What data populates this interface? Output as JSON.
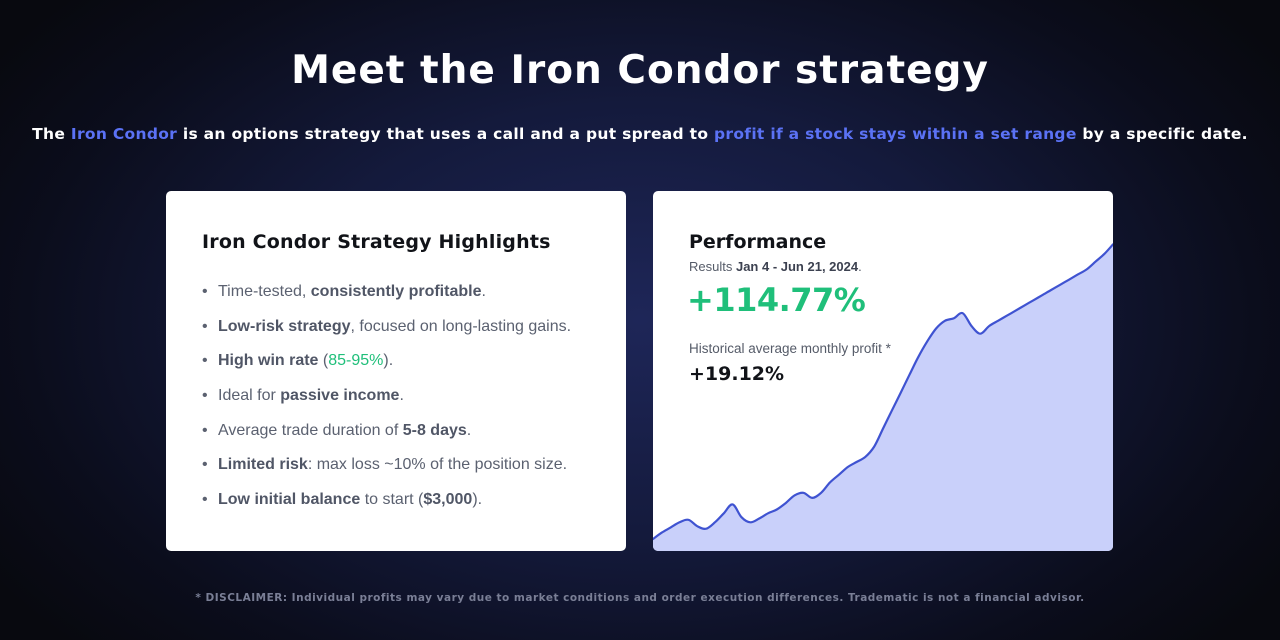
{
  "header": {
    "title": "Meet the Iron Condor strategy",
    "subtitle": {
      "part1": "The ",
      "accent1": "Iron Condor",
      "part2": " is an options strategy that uses a call and a put spread to ",
      "accent2": "profit if a stock stays within a set range",
      "part3": " by a specific date."
    }
  },
  "highlights": {
    "title": "Iron Condor Strategy Highlights",
    "items": [
      {
        "pre": "Time-tested, ",
        "bold": "consistently profitable",
        "post": "."
      },
      {
        "pre": "",
        "bold": "Low-risk strategy",
        "post": ", focused on long-lasting gains."
      },
      {
        "pre": "",
        "bold": "High win rate",
        "mid": " (",
        "green": "85-95%",
        "post": ")."
      },
      {
        "pre": "Ideal for ",
        "bold": "passive income",
        "post": "."
      },
      {
        "pre": "Average trade duration of ",
        "bold": "5-8 days",
        "post": "."
      },
      {
        "pre": "",
        "bold": "Limited risk",
        "post": ": max loss ~10% of the position size."
      },
      {
        "pre": "",
        "bold": "Low initial balance",
        "mid": " to start (",
        "bold2": "$3,000",
        "post": ")."
      }
    ]
  },
  "performance": {
    "title": "Performance",
    "results_prefix": "Results ",
    "results_range": "Jan 4 - Jun 21, 2024",
    "results_suffix": ".",
    "total_return": "+114.77%",
    "monthly_label": "Historical average monthly profit *",
    "monthly_value": "+19.12%",
    "line_color": "#3f53d1",
    "fill_color": "#c9d0fa"
  },
  "chart_data": {
    "type": "area",
    "x": [
      0,
      1,
      2,
      3,
      4,
      5,
      6,
      7,
      8,
      9,
      10,
      11,
      12,
      13,
      14,
      15,
      16,
      17,
      18,
      19,
      20,
      21,
      22,
      23,
      24,
      25,
      26,
      27,
      28,
      29,
      30,
      31,
      32,
      33,
      34,
      35,
      36,
      37,
      38,
      39,
      40,
      41,
      42,
      43,
      44,
      45,
      46,
      47,
      48,
      49,
      50,
      51,
      52
    ],
    "values": [
      0,
      2.5,
      4.5,
      6.5,
      7.5,
      5,
      4,
      6.5,
      10,
      13.5,
      8.5,
      6.5,
      8,
      10,
      11.5,
      14,
      17,
      18,
      16,
      18,
      22,
      25,
      28,
      30,
      32,
      36,
      43,
      50,
      57,
      64,
      71,
      77,
      82,
      85,
      86,
      88,
      83,
      80,
      83,
      85,
      87,
      89,
      91,
      93,
      95,
      97,
      99,
      101,
      103,
      105,
      108,
      111,
      114.77
    ],
    "ylim": [
      0,
      120
    ],
    "grid": false,
    "legend": "none"
  },
  "footer": {
    "disclaimer": "* DISCLAIMER: Individual profits may vary due to market conditions and order execution differences. Tradematic is not a financial advisor."
  }
}
